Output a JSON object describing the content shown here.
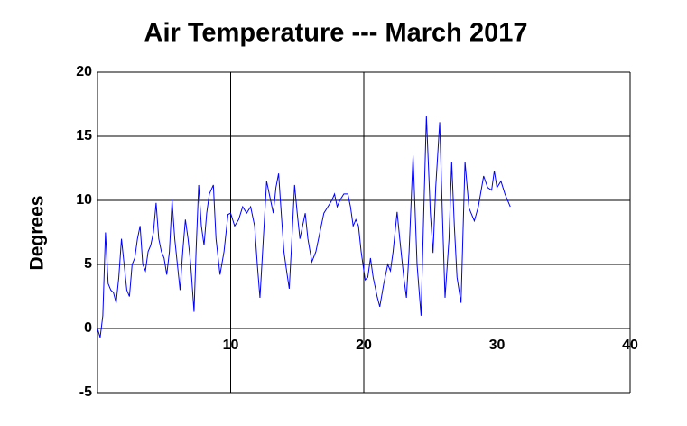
{
  "chart_data": {
    "type": "line",
    "title": "Air Temperature --- March 2017",
    "y_label": "Degrees",
    "xlim": [
      0,
      40
    ],
    "xticks": [
      10,
      20,
      30,
      40
    ],
    "ylim": [
      -5,
      20
    ],
    "yticks": [
      -5,
      0,
      5,
      10,
      15,
      20
    ],
    "grid": true,
    "series": [
      {
        "color": "#0000ff",
        "x": [
          0,
          0.2,
          0.4,
          0.6,
          0.8,
          1,
          1.2,
          1.4,
          1.6,
          1.8,
          2,
          2.2,
          2.4,
          2.6,
          2.8,
          3,
          3.2,
          3.4,
          3.6,
          3.8,
          4,
          4.2,
          4.4,
          4.6,
          4.8,
          5,
          5.2,
          5.4,
          5.6,
          5.8,
          6,
          6.2,
          6.4,
          6.6,
          6.8,
          7,
          7.25,
          7.4,
          7.6,
          7.8,
          8,
          8.2,
          8.4,
          8.7,
          8.9,
          9.2,
          9.5,
          9.8,
          10,
          10.3,
          10.6,
          10.9,
          11.2,
          11.5,
          11.8,
          12,
          12.2,
          12.4,
          12.7,
          13,
          13.2,
          13.4,
          13.6,
          13.8,
          14,
          14.2,
          14.4,
          14.6,
          14.8,
          15,
          15.2,
          15.4,
          15.6,
          15.8,
          16.1,
          16.4,
          16.7,
          17,
          17.3,
          17.6,
          17.8,
          18,
          18.2,
          18.5,
          18.8,
          19,
          19.2,
          19.4,
          19.6,
          19.8,
          20.1,
          20.3,
          20.5,
          20.7,
          21,
          21.2,
          21.5,
          21.8,
          22,
          22.2,
          22.5,
          22.7,
          23,
          23.2,
          23.4,
          23.7,
          24,
          24.3,
          24.5,
          24.7,
          25,
          25.2,
          25.4,
          25.7,
          25.9,
          26.1,
          26.4,
          26.6,
          26.8,
          27,
          27.3,
          27.6,
          27.9,
          28.3,
          28.6,
          29,
          29.3,
          29.6,
          29.8,
          30,
          30.3,
          30.6,
          31
        ],
        "values": [
          0,
          -0.7,
          1,
          7.5,
          3.5,
          3,
          2.8,
          2,
          4,
          7,
          5,
          3,
          2.5,
          5,
          5.5,
          7,
          8,
          5,
          4.5,
          6,
          6.5,
          7.5,
          9.8,
          7,
          6,
          5.5,
          4.2,
          6,
          10,
          7,
          5,
          3,
          6,
          8.5,
          7,
          5,
          1.3,
          6,
          11.2,
          8,
          6.5,
          9,
          10.5,
          11.2,
          7,
          4.2,
          6,
          8.9,
          9,
          8,
          8.5,
          9.5,
          9,
          9.5,
          8,
          5,
          2.4,
          6,
          11.5,
          10,
          9,
          11,
          12.1,
          9,
          6,
          4.5,
          3.1,
          7,
          11.2,
          9,
          7,
          8,
          9,
          7,
          5.2,
          6,
          7.5,
          9,
          9.5,
          10,
          10.5,
          9.5,
          10,
          10.5,
          10.5,
          9.5,
          8,
          8.5,
          8,
          6,
          3.8,
          4,
          5.5,
          4,
          2.5,
          1.7,
          3.5,
          5,
          4.5,
          6,
          9.1,
          7,
          4,
          2.4,
          6,
          13.5,
          5,
          1,
          9,
          16.6,
          9,
          5.9,
          11,
          16.1,
          9,
          2.4,
          7,
          13,
          8,
          4,
          2,
          13,
          9.4,
          8.4,
          9.5,
          11.9,
          11,
          10.8,
          12.3,
          11,
          11.5,
          10.5,
          9.5
        ]
      }
    ]
  }
}
